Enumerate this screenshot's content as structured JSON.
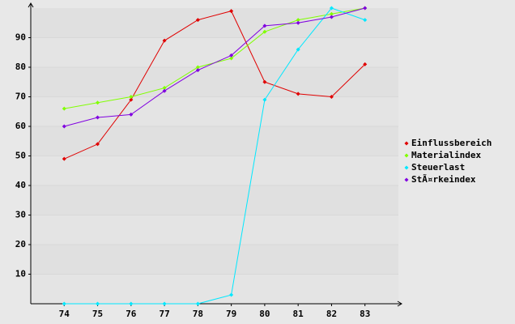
{
  "chart_data": {
    "type": "line",
    "x": [
      74,
      75,
      76,
      77,
      78,
      79,
      80,
      81,
      82,
      83
    ],
    "xlim": [
      73,
      84
    ],
    "xticks": [
      74,
      75,
      76,
      77,
      78,
      79,
      80,
      81,
      82,
      83
    ],
    "ylim": [
      0,
      100
    ],
    "yticks": [
      10,
      20,
      30,
      40,
      50,
      60,
      70,
      80,
      90
    ],
    "grid": true,
    "legend": "right",
    "series": [
      {
        "name": "Einflussbereich",
        "color": "#e00000",
        "values": [
          49,
          54,
          69,
          89,
          96,
          99,
          75,
          71,
          70,
          81
        ]
      },
      {
        "name": "Materialindex",
        "color": "#80ff00",
        "values": [
          66,
          68,
          70,
          73,
          80,
          83,
          92,
          96,
          98,
          100
        ]
      },
      {
        "name": "Steuerlast",
        "color": "#00e8ff",
        "values": [
          0,
          0,
          0,
          0,
          0,
          3,
          69,
          86,
          100,
          96
        ]
      },
      {
        "name": "StÃ¤rkeindex",
        "color": "#8000e0",
        "values": [
          60,
          63,
          64,
          72,
          79,
          84,
          94,
          95,
          97,
          100
        ]
      }
    ]
  }
}
